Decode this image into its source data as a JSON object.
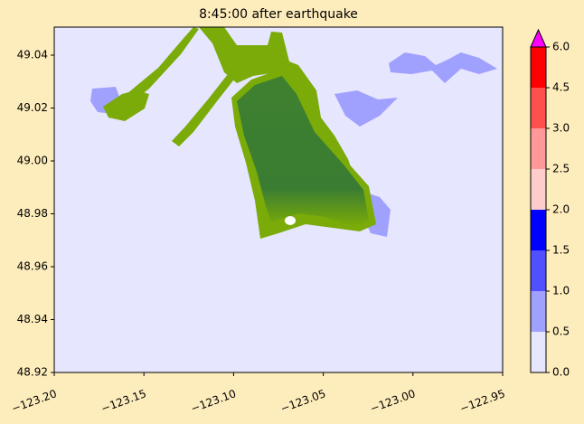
{
  "chart_data": {
    "type": "contourf",
    "title": "8:45:00 after earthquake",
    "xlim": [
      -123.2,
      -122.95
    ],
    "xticks": [
      {
        "value": -123.2,
        "label": "−123.20"
      },
      {
        "value": -123.15,
        "label": "−123.15"
      },
      {
        "value": -123.1,
        "label": "−123.10"
      },
      {
        "value": -123.05,
        "label": "−123.05"
      },
      {
        "value": -123.0,
        "label": "−123.00"
      },
      {
        "value": -122.95,
        "label": "−122.95"
      }
    ],
    "ylim": [
      48.92,
      49.0506
    ],
    "yticks": [
      48.92,
      48.94,
      48.96,
      48.98,
      {
        "value": 49.0,
        "label": "49.00"
      },
      49.02,
      49.04
    ],
    "colorbar": {
      "levels": [
        {
          "value": 0.0,
          "label": "0.0"
        },
        0.5,
        {
          "value": 1.0,
          "label": "1.0"
        },
        1.5,
        {
          "value": 2.0,
          "label": "2.0"
        },
        2.5,
        {
          "value": 3.0,
          "label": "3.0"
        },
        4.5,
        {
          "value": 6.0,
          "label": "6.0"
        }
      ],
      "colors": [
        "#e6e6ff",
        "#a0a0ff",
        "#5050ff",
        "#0000ff",
        "#ffcccc",
        "#ff9999",
        "#ff5050",
        "#ff0000"
      ],
      "extend_color": "#ff00ff"
    }
  }
}
